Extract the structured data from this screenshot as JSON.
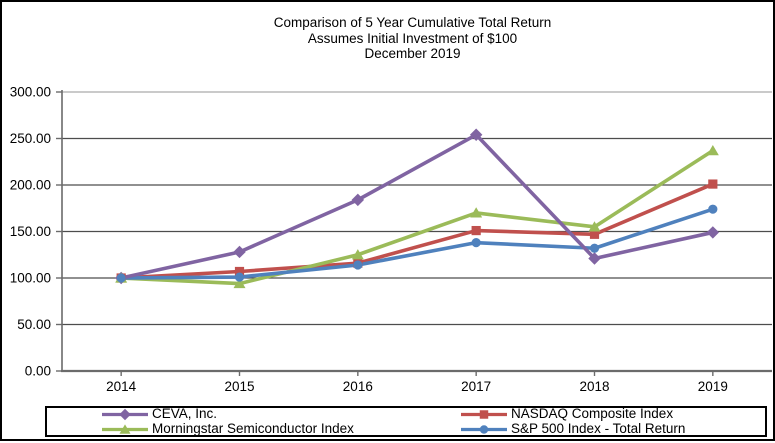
{
  "chart_data": {
    "type": "line",
    "title": "Comparison of 5 Year Cumulative Total Return",
    "subtitle1": "Assumes Initial Investment of $100",
    "subtitle2": "December 2019",
    "categories": [
      "2014",
      "2015",
      "2016",
      "2017",
      "2018",
      "2019"
    ],
    "series": [
      {
        "name": "CEVA, Inc.",
        "color": "#8064A2",
        "marker": "diamond",
        "values": [
          100,
          128,
          184,
          254,
          121,
          149
        ]
      },
      {
        "name": "NASDAQ Composite Index",
        "color": "#C0504D",
        "marker": "square",
        "values": [
          100,
          107,
          116,
          151,
          147,
          201
        ]
      },
      {
        "name": "Morningstar Semiconductor Index",
        "color": "#9BBB59",
        "marker": "triangle",
        "values": [
          100,
          94,
          125,
          170,
          155,
          237
        ]
      },
      {
        "name": "S&P 500 Index - Total Return",
        "color": "#4F81BD",
        "marker": "circle",
        "values": [
          100,
          101,
          114,
          138,
          132,
          174
        ]
      }
    ],
    "y_ticks": [
      {
        "value": 0,
        "label": "0.00"
      },
      {
        "value": 50,
        "label": "50.00"
      },
      {
        "value": 100,
        "label": "100.00"
      },
      {
        "value": 150,
        "label": "150.00"
      },
      {
        "value": 200,
        "label": "200.00"
      },
      {
        "value": 250,
        "label": "250.00"
      },
      {
        "value": 300,
        "label": "300.00"
      }
    ],
    "ylim": [
      0,
      300
    ],
    "xlabel": "",
    "ylabel": "",
    "grid": true,
    "legend_position": "bottom",
    "colors": {
      "gridline": "#4d4d4d",
      "top_gridline": "#aaaaaa",
      "axis": "#6b6b6b",
      "text": "#000000",
      "background": "#ffffff"
    }
  }
}
